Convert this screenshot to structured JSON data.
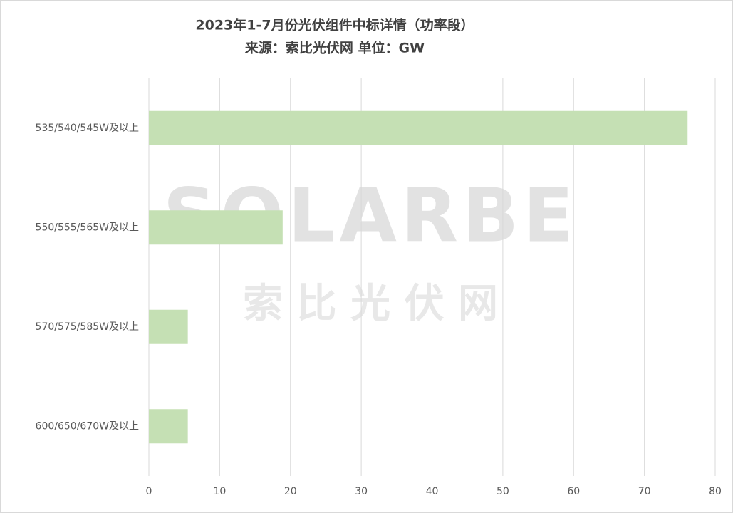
{
  "chart_data": {
    "type": "hbar",
    "title": "2023年1-7月份光伏组件中标详情（功率段）",
    "subtitle": "来源：索比光伏网 单位：GW",
    "watermark": [
      "SOLARBE",
      "索 比 光 伏 网"
    ],
    "categories": [
      "535/540/545W及以上",
      "550/555/565W及以上",
      "570/575/585W及以上",
      "600/650/670W及以上"
    ],
    "values": [
      76.1,
      18.9,
      5.5,
      5.5
    ],
    "color": "#c5e0b4",
    "xlim": [
      0,
      80
    ],
    "xticks": [
      0,
      10,
      20,
      30,
      40,
      50,
      60,
      70,
      80
    ],
    "grid": true
  }
}
